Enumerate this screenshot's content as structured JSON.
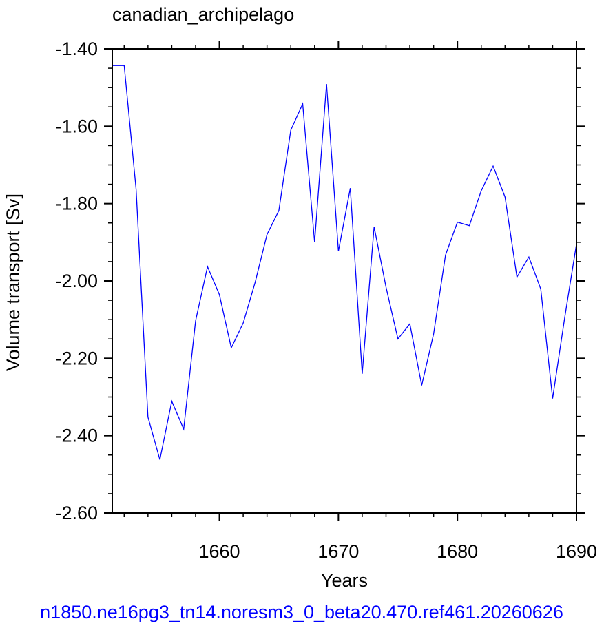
{
  "chart_data": {
    "type": "line",
    "title": "canadian_archipelago",
    "xlabel": "Years",
    "ylabel": "Volume transport [Sv]",
    "footer": "n1850.ne16pg3_tn14.noresm3_0_beta20.470.ref461.20260626",
    "xlim": [
      1651,
      1690
    ],
    "ylim": [
      -2.6,
      -1.4
    ],
    "x_ticks": [
      1660,
      1670,
      1680,
      1690
    ],
    "x_tick_labels": [
      "1660",
      "1670",
      "1680",
      "1690"
    ],
    "y_ticks": [
      -2.6,
      -2.4,
      -2.2,
      -2.0,
      -1.8,
      -1.6,
      -1.4
    ],
    "y_tick_labels": [
      "-2.60",
      "-2.40",
      "-2.20",
      "-2.00",
      "-1.80",
      "-1.60",
      "-1.40"
    ],
    "line_color": "#0000ff",
    "footer_color": "#0000ff",
    "x": [
      1651,
      1652,
      1653,
      1654,
      1655,
      1656,
      1657,
      1658,
      1659,
      1660,
      1661,
      1662,
      1663,
      1664,
      1665,
      1666,
      1667,
      1668,
      1669,
      1670,
      1671,
      1672,
      1673,
      1674,
      1675,
      1676,
      1677,
      1678,
      1679,
      1680,
      1681,
      1682,
      1683,
      1684,
      1685,
      1686,
      1687,
      1688,
      1689,
      1690
    ],
    "y": [
      -1.443,
      -1.443,
      -1.763,
      -2.352,
      -2.462,
      -2.311,
      -2.383,
      -2.103,
      -1.963,
      -2.035,
      -2.173,
      -2.109,
      -2.004,
      -1.88,
      -1.818,
      -1.61,
      -1.542,
      -1.9,
      -1.491,
      -1.923,
      -1.76,
      -2.24,
      -1.86,
      -2.016,
      -2.15,
      -2.111,
      -2.27,
      -2.137,
      -1.933,
      -1.848,
      -1.857,
      -1.767,
      -1.703,
      -1.783,
      -1.99,
      -1.938,
      -2.021,
      -2.304,
      -2.098,
      -1.905
    ]
  }
}
